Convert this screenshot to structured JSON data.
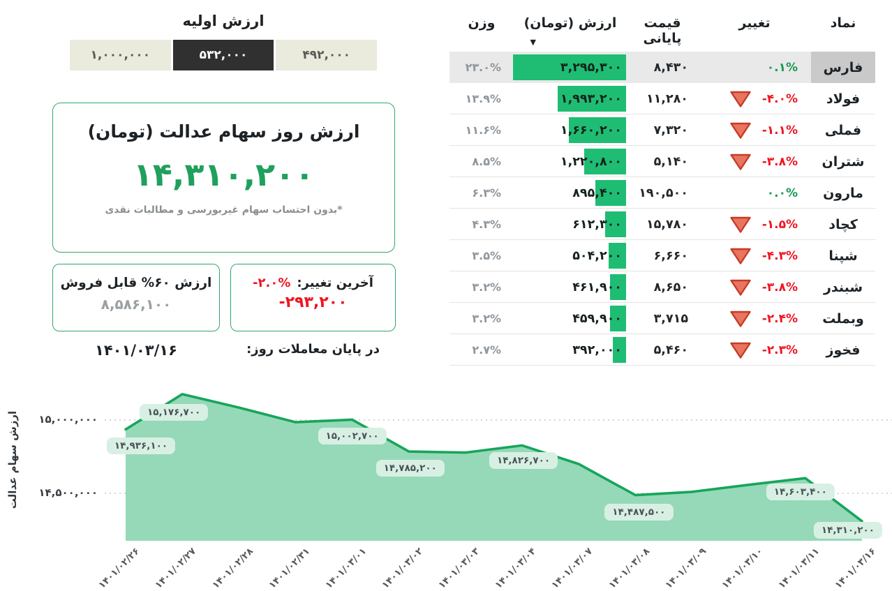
{
  "colors": {
    "accent_green": "#1fa05c",
    "bar_green": "#1fbd73",
    "chart_line": "#17a55b",
    "chart_fill": "#95d9b8",
    "chip_bg": "#d8f0e3",
    "negative_red": "#ef1421",
    "triangle_fill": "#e9745f",
    "triangle_stroke": "#c43c27",
    "selected_tab_bg": "#303030",
    "tab_bg": "#eaeadd",
    "row_highlight": "#e9e9e9",
    "symbol_highlight": "#c9c9c9"
  },
  "initial_value": {
    "title": "ارزش اولیه",
    "options": [
      {
        "label": "۱,۰۰۰,۰۰۰",
        "selected": false
      },
      {
        "label": "۵۳۲,۰۰۰",
        "selected": true
      },
      {
        "label": "۴۹۲,۰۰۰",
        "selected": false
      }
    ]
  },
  "main_card": {
    "title": "ارزش روز سهام عدالت (تومان)",
    "value": "۱۴,۳۱۰,۲۰۰",
    "footnote": "*بدون احتساب سهام غیربورسی و مطالبات نقدی"
  },
  "sellable_card": {
    "title": "ارزش ۶۰% قابل فروش",
    "value": "۸,۵۸۶,۱۰۰",
    "caption": "۱۴۰۱/۰۳/۱۶"
  },
  "change_card": {
    "label": "آخرین تغییر:",
    "percent": "-۲.۰%",
    "amount": "-۲۹۳,۲۰۰",
    "caption": "در پایان معاملات روز:"
  },
  "table": {
    "columns": {
      "symbol": "نماد",
      "change": "تغییر",
      "price": "قیمت پایانی",
      "value": "ارزش (تومان)",
      "weight": "وزن"
    },
    "sorted_by": "value",
    "sort_arrow": "▼",
    "rows": [
      {
        "symbol": "فارس",
        "change": "۰.۱%",
        "direction": "up",
        "price": "۸,۴۳۰",
        "value": "۳,۲۹۵,۳۰۰",
        "value_num": 3295300,
        "weight": "۲۳.۰%",
        "highlight": true
      },
      {
        "symbol": "فولاد",
        "change": "-۴.۰%",
        "direction": "down",
        "price": "۱۱,۲۸۰",
        "value": "۱,۹۹۳,۲۰۰",
        "value_num": 1993200,
        "weight": "۱۳.۹%",
        "highlight": false
      },
      {
        "symbol": "فملی",
        "change": "-۱.۱%",
        "direction": "down",
        "price": "۷,۳۲۰",
        "value": "۱,۶۶۰,۲۰۰",
        "value_num": 1660200,
        "weight": "۱۱.۶%",
        "highlight": false
      },
      {
        "symbol": "شتران",
        "change": "-۳.۸%",
        "direction": "down",
        "price": "۵,۱۴۰",
        "value": "۱,۲۲۰,۸۰۰",
        "value_num": 1220800,
        "weight": "۸.۵%",
        "highlight": false
      },
      {
        "symbol": "مارون",
        "change": "۰.۰%",
        "direction": "flat",
        "price": "۱۹۰,۵۰۰",
        "value": "۸۹۵,۴۰۰",
        "value_num": 895400,
        "weight": "۶.۳%",
        "highlight": false
      },
      {
        "symbol": "کچاد",
        "change": "-۱.۵%",
        "direction": "down",
        "price": "۱۵,۷۸۰",
        "value": "۶۱۲,۳۰۰",
        "value_num": 612300,
        "weight": "۴.۳%",
        "highlight": false
      },
      {
        "symbol": "شپنا",
        "change": "-۴.۳%",
        "direction": "down",
        "price": "۶,۶۶۰",
        "value": "۵۰۴,۲۰۰",
        "value_num": 504200,
        "weight": "۳.۵%",
        "highlight": false
      },
      {
        "symbol": "شبندر",
        "change": "-۳.۸%",
        "direction": "down",
        "price": "۸,۶۵۰",
        "value": "۴۶۱,۹۰۰",
        "value_num": 461900,
        "weight": "۳.۲%",
        "highlight": false
      },
      {
        "symbol": "وبملت",
        "change": "-۲.۴%",
        "direction": "down",
        "price": "۳,۷۱۵",
        "value": "۴۵۹,۹۰۰",
        "value_num": 459900,
        "weight": "۳.۲%",
        "highlight": false
      },
      {
        "symbol": "فخوز",
        "change": "-۲.۳%",
        "direction": "down",
        "price": "۵,۴۶۰",
        "value": "۳۹۲,۰۰۰",
        "value_num": 392000,
        "weight": "۲.۷%",
        "highlight": false
      }
    ]
  },
  "chart_data": {
    "type": "area",
    "ylabel": "ارزش سهام عدالت",
    "grid": true,
    "ylim": [
      14176000,
      15224000
    ],
    "yticks": [
      {
        "value": 15000000,
        "label": "۱۵,۰۰۰,۰۰۰"
      },
      {
        "value": 14500000,
        "label": "۱۴,۵۰۰,۰۰۰"
      }
    ],
    "x": [
      "۱۴۰۱/۰۲/۲۶",
      "۱۴۰۱/۰۲/۲۷",
      "۱۴۰۱/۰۲/۲۸",
      "۱۴۰۱/۰۲/۳۱",
      "۱۴۰۱/۰۳/۰۱",
      "۱۴۰۱/۰۳/۰۲",
      "۱۴۰۱/۰۳/۰۳",
      "۱۴۰۱/۰۳/۰۴",
      "۱۴۰۱/۰۳/۰۷",
      "۱۴۰۱/۰۳/۰۸",
      "۱۴۰۱/۰۳/۰۹",
      "۱۴۰۱/۰۳/۱۰",
      "۱۴۰۱/۰۳/۱۱",
      "۱۴۰۱/۰۳/۱۶"
    ],
    "values": [
      14936100,
      15176700,
      15085000,
      14985000,
      15002700,
      14785200,
      14778000,
      14826700,
      14700000,
      14487500,
      14510000,
      14558000,
      14603400,
      14310200
    ],
    "estimated_indices": [
      2,
      3,
      6,
      8,
      10,
      11
    ],
    "point_labels": [
      {
        "index": 0,
        "label": "۱۴,۹۳۶,۱۰۰"
      },
      {
        "index": 1,
        "label": "۱۵,۱۷۶,۷۰۰"
      },
      {
        "index": 4,
        "label": "۱۵,۰۰۲,۷۰۰"
      },
      {
        "index": 5,
        "label": "۱۴,۷۸۵,۲۰۰"
      },
      {
        "index": 7,
        "label": "۱۴,۸۲۶,۷۰۰"
      },
      {
        "index": 9,
        "label": "۱۴,۴۸۷,۵۰۰"
      },
      {
        "index": 12,
        "label": "۱۴,۶۰۳,۴۰۰"
      },
      {
        "index": 13,
        "label": "۱۴,۳۱۰,۲۰۰"
      }
    ]
  }
}
